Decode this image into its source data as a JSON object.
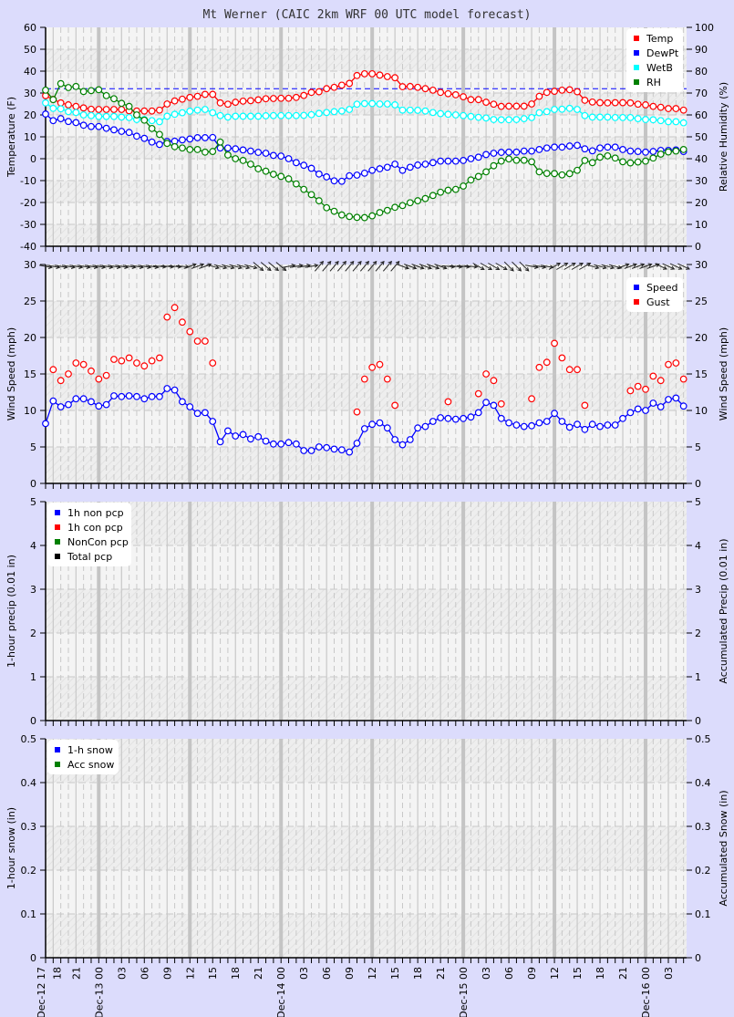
{
  "title": "Mt Werner (CAIC 2km WRF 00 UTC model forecast)",
  "colors": {
    "temp": "#ff0000",
    "dewpt": "#0000ff",
    "wetb": "#00ffff",
    "rh": "#008000",
    "speed": "#0000ff",
    "gust": "#ff0000",
    "total": "#000000",
    "background": "#dcdcfc",
    "plot": "#f4f4f4",
    "grid": "#c8c8c8"
  },
  "x_axis": {
    "start": "Dec-12 17",
    "interval": "hourly",
    "tick_labels": [
      "Dec-12 17",
      "18",
      "21",
      "Dec-13 00",
      "03",
      "06",
      "09",
      "12",
      "15",
      "18",
      "21",
      "Dec-14 00",
      "03",
      "06",
      "09",
      "12",
      "15",
      "18",
      "21",
      "Dec-15 00",
      "03",
      "06",
      "09",
      "12",
      "15",
      "18",
      "21",
      "Dec-16 00",
      "03"
    ]
  },
  "chart_data": [
    {
      "type": "line",
      "ylabel": "Temperature (F)",
      "ylabel_right": "Relative Humidity (%)",
      "ylim": [
        -40,
        60
      ],
      "ylim_right": [
        0,
        100
      ],
      "yticks": [
        "-40",
        "-30",
        "-20",
        "-10",
        "0",
        "10",
        "20",
        "30",
        "40",
        "50",
        "60"
      ],
      "yticks_right": [
        "0",
        "10",
        "20",
        "30",
        "40",
        "50",
        "60",
        "70",
        "80",
        "90",
        "100"
      ],
      "reference_line": {
        "value": 32,
        "style": "dashed",
        "color": "#0000ff"
      },
      "legend_placement": "top-right",
      "series": [
        {
          "name": "Temp",
          "axis": "left",
          "color": "#ff0000",
          "values": [
            28.8,
            27.1,
            25.5,
            24.6,
            23.9,
            23.2,
            22.6,
            22.5,
            22.5,
            22.5,
            22.5,
            21.9,
            21.8,
            21.8,
            21.8,
            22.2,
            25,
            26.4,
            27.2,
            28,
            28.5,
            29.4,
            29.4,
            25.5,
            24.9,
            25.8,
            26.3,
            26.5,
            26.9,
            27.4,
            27.5,
            27.6,
            27.6,
            28,
            28.9,
            30.3,
            30.6,
            32,
            32.6,
            33.6,
            34.4,
            38,
            38.8,
            38.8,
            38.2,
            37.5,
            37,
            32.9,
            33,
            32.6,
            32,
            31.3,
            30.3,
            29.7,
            29.2,
            28.3,
            27,
            27,
            25.8,
            24.9,
            23.9,
            24,
            24,
            24,
            25,
            28.5,
            30.3,
            30.8,
            31.3,
            31.5,
            30.6,
            26.7,
            25.9,
            25.6,
            25.5,
            25.6,
            25.6,
            25.5,
            24.9,
            24.6,
            23.9,
            23.5,
            22.9,
            22.9,
            22.2
          ]
        },
        {
          "name": "DewPt",
          "axis": "left",
          "color": "#0000ff",
          "values": [
            20.4,
            17.4,
            18.3,
            17,
            16.5,
            15.3,
            14.7,
            14.7,
            13.9,
            13.2,
            12.5,
            12,
            10.3,
            9.3,
            7.6,
            6.5,
            7.9,
            8,
            8.6,
            9,
            9.6,
            9.6,
            9.7,
            4.9,
            4.9,
            4.5,
            4,
            3.5,
            2.9,
            2.5,
            1.5,
            1.2,
            0,
            -1.8,
            -3,
            -4.4,
            -7,
            -8.3,
            -10.1,
            -10.3,
            -7.8,
            -7.5,
            -6.6,
            -5.3,
            -4.6,
            -3.9,
            -2.5,
            -5.3,
            -3.9,
            -2.9,
            -2.5,
            -1.8,
            -1.1,
            -1.1,
            -1.1,
            -0.8,
            0,
            0.7,
            1.9,
            2.5,
            2.9,
            3,
            3,
            3.5,
            3.5,
            4.2,
            4.9,
            5.3,
            5.3,
            5.8,
            6.1,
            4.5,
            3.6,
            4.9,
            5.3,
            5.3,
            4.2,
            3.5,
            3.3,
            3,
            3.3,
            3.8,
            3.8,
            4,
            3.3
          ]
        },
        {
          "name": "WetB",
          "axis": "left",
          "color": "#00ffff",
          "values": [
            25.5,
            23,
            22.8,
            21.5,
            21.1,
            20,
            19.7,
            19.3,
            19.3,
            19.3,
            19,
            18.8,
            17.9,
            17.9,
            17.4,
            16.9,
            19.4,
            20.3,
            21,
            21.7,
            22.2,
            22.5,
            21,
            19.7,
            19,
            19.4,
            19.4,
            19.4,
            19.4,
            19.6,
            19.7,
            19.7,
            19.7,
            19.7,
            19.8,
            20.1,
            20.7,
            21.1,
            21.5,
            21.8,
            22.5,
            24.9,
            25.2,
            25.2,
            25,
            25,
            24.6,
            22.2,
            22.2,
            22.1,
            21.8,
            21.1,
            20.6,
            20.3,
            20,
            19.7,
            19.3,
            18.9,
            18.6,
            17.9,
            17.8,
            17.8,
            17.9,
            18.3,
            18.8,
            21,
            21.5,
            22.5,
            22.6,
            23,
            22.5,
            19.7,
            19,
            19,
            19,
            18.8,
            18.8,
            18.8,
            18.3,
            17.9,
            17.8,
            17.4,
            16.9,
            16.9,
            16.4
          ]
        },
        {
          "name": "RH",
          "axis": "right",
          "color": "#008000",
          "values": [
            71.3,
            67,
            74.3,
            72.5,
            73,
            70.7,
            71.1,
            71.5,
            68.8,
            67.4,
            65.3,
            63.9,
            60,
            57.6,
            53.8,
            51.1,
            47,
            45.5,
            44.9,
            44.2,
            44.2,
            43,
            43.3,
            47.6,
            41.7,
            40,
            39.2,
            37.5,
            35.4,
            34.3,
            32.9,
            31.9,
            30.8,
            28.5,
            26,
            23.6,
            20.8,
            17.6,
            16,
            14.3,
            13.6,
            13.2,
            13.1,
            13.9,
            15.4,
            16.4,
            17.8,
            18.6,
            19.9,
            20.8,
            21.8,
            23.2,
            24.7,
            25.6,
            26,
            27.5,
            30.3,
            31.9,
            34,
            36.8,
            38.9,
            39.9,
            39.3,
            39.3,
            38.6,
            34,
            33.3,
            33.2,
            32.6,
            33.2,
            34.7,
            39.2,
            38.2,
            40.7,
            41.3,
            40.3,
            38.6,
            38.1,
            38.5,
            38.9,
            40.3,
            42.1,
            43.1,
            43.5,
            44.2
          ]
        }
      ]
    },
    {
      "type": "line",
      "ylabel": "Wind Speed (mph)",
      "ylabel_right": "Wind Speed (mph)",
      "ylim": [
        0,
        30
      ],
      "yticks": [
        "0",
        "5",
        "10",
        "15",
        "20",
        "25",
        "30"
      ],
      "legend_placement": "top-right",
      "wind_direction_deg": [
        280,
        280,
        280,
        280,
        280,
        280,
        280,
        280,
        280,
        280,
        280,
        280,
        280,
        280,
        280,
        275,
        275,
        275,
        275,
        250,
        250,
        250,
        285,
        285,
        285,
        285,
        285,
        285,
        310,
        310,
        310,
        310,
        260,
        260,
        260,
        260,
        220,
        220,
        220,
        220,
        220,
        220,
        220,
        220,
        220,
        220,
        220,
        290,
        290,
        290,
        290,
        290,
        290,
        275,
        275,
        275,
        275,
        300,
        300,
        300,
        300,
        315,
        315,
        315,
        280,
        280,
        280,
        240,
        240,
        240,
        240,
        240,
        285,
        285,
        285,
        285,
        250,
        250,
        250,
        250,
        250,
        295,
        295,
        295,
        295
      ],
      "series": [
        {
          "name": "Speed",
          "color": "#0000ff",
          "connected": true,
          "values": [
            8.2,
            11.3,
            10.5,
            10.8,
            11.6,
            11.6,
            11.2,
            10.6,
            10.8,
            12,
            11.9,
            12,
            11.9,
            11.6,
            11.9,
            11.9,
            13,
            12.8,
            11.2,
            10.5,
            9.6,
            9.7,
            8.5,
            5.7,
            7.2,
            6.5,
            6.7,
            6.1,
            6.4,
            5.8,
            5.4,
            5.4,
            5.6,
            5.4,
            4.5,
            4.5,
            5,
            4.9,
            4.7,
            4.6,
            4.3,
            5.5,
            7.5,
            8.1,
            8.3,
            7.6,
            6,
            5.3,
            6,
            7.6,
            7.8,
            8.5,
            9,
            8.9,
            8.8,
            8.9,
            9.1,
            9.7,
            11.1,
            10.7,
            8.9,
            8.3,
            8,
            7.8,
            7.9,
            8.3,
            8.5,
            9.6,
            8.5,
            7.7,
            8.1,
            7.4,
            8.1,
            7.8,
            8,
            8,
            8.9,
            9.7,
            10.2,
            10,
            11,
            10.5,
            11.5,
            11.7,
            10.6
          ]
        },
        {
          "name": "Gust",
          "color": "#ff0000",
          "connected": false,
          "values": [
            null,
            15.6,
            14.1,
            15,
            16.5,
            16.3,
            15.4,
            14.3,
            14.8,
            17,
            16.8,
            17.2,
            16.5,
            16.1,
            16.8,
            17.2,
            22.8,
            24.1,
            22.1,
            20.8,
            19.5,
            19.5,
            16.5,
            null,
            null,
            null,
            null,
            null,
            null,
            null,
            null,
            null,
            null,
            null,
            null,
            null,
            null,
            null,
            null,
            null,
            null,
            9.8,
            14.3,
            15.9,
            16.3,
            14.3,
            10.7,
            null,
            null,
            null,
            null,
            null,
            null,
            11.2,
            null,
            null,
            null,
            12.3,
            15,
            14.1,
            10.9,
            null,
            null,
            null,
            11.6,
            15.9,
            16.6,
            19.2,
            17.2,
            15.6,
            15.6,
            10.7,
            null,
            null,
            null,
            null,
            null,
            12.7,
            13.3,
            12.9,
            14.7,
            14.1,
            16.3,
            16.5,
            14.3
          ]
        }
      ]
    },
    {
      "type": "line",
      "ylabel": "1-hour precip (0.01 in)",
      "ylabel_right": "Accumulated Precip (0.01 in)",
      "ylim": [
        0,
        5
      ],
      "yticks": [
        "0",
        "1",
        "2",
        "3",
        "4",
        "5"
      ],
      "legend_placement": "top-left",
      "series": [
        {
          "name": "1h non pcp",
          "color": "#0000ff",
          "values": []
        },
        {
          "name": "1h con pcp",
          "color": "#ff0000",
          "values": []
        },
        {
          "name": "NonCon pcp",
          "color": "#008000",
          "values": []
        },
        {
          "name": "Total pcp",
          "color": "#000000",
          "values": []
        }
      ]
    },
    {
      "type": "line",
      "ylabel": "1-hour snow (in)",
      "ylabel_right": "Accumulated Snow (in)",
      "ylim": [
        0,
        0.5
      ],
      "yticks": [
        "0",
        "0.1",
        "0.2",
        "0.3",
        "0.4",
        "0.5"
      ],
      "legend_placement": "top-left",
      "series": [
        {
          "name": "1-h snow",
          "color": "#0000ff",
          "values": []
        },
        {
          "name": "Acc snow",
          "color": "#008000",
          "values": []
        }
      ]
    }
  ]
}
